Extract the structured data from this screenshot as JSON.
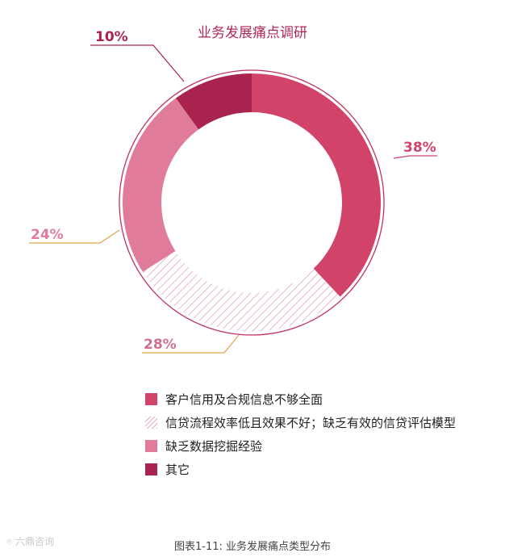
{
  "chart_data": {
    "type": "pie",
    "title": "业务发展痛点调研",
    "categories": [
      "客户信用及合规信息不够全面",
      "信贷流程效率低且效果不好；缺乏有效的信贷评估模型",
      "缺乏数据挖掘经验",
      "其它"
    ],
    "values": [
      38,
      28,
      24,
      10
    ],
    "value_labels": [
      "38%",
      "28%",
      "24%",
      "10%"
    ],
    "colors": [
      "#d2436a",
      "#e7a8bb",
      "#e07c99",
      "#a8244f"
    ],
    "patterns": [
      "solid",
      "hatched",
      "solid",
      "solid"
    ],
    "donut": true,
    "legend_position": "bottom"
  },
  "caption": "图表1-11: 业务发展痛点类型分布",
  "watermark": "六鼎咨询"
}
